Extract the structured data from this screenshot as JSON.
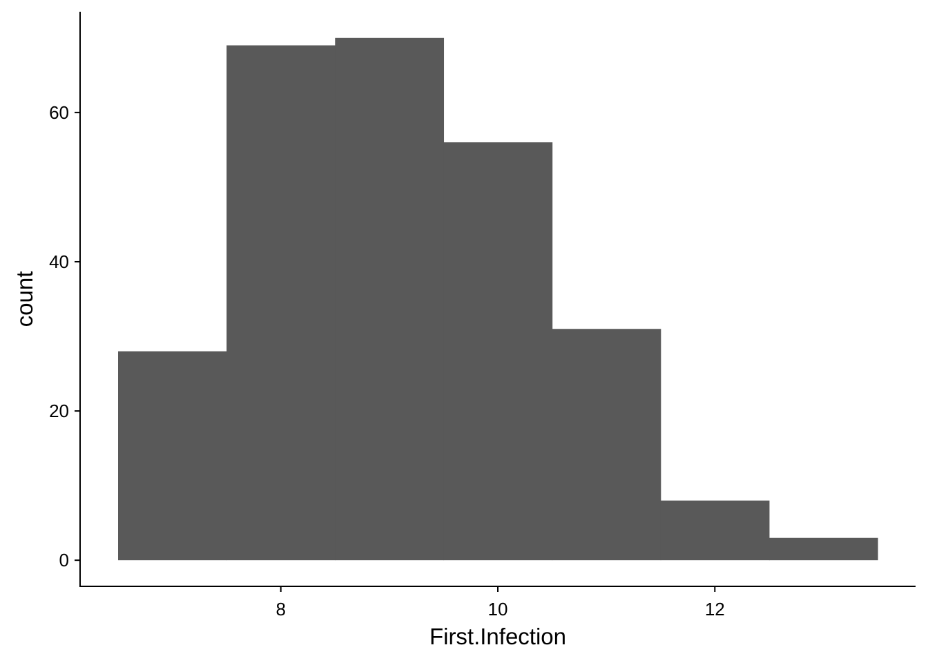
{
  "chart_data": {
    "type": "bar",
    "subtype": "histogram",
    "title": "",
    "xlabel": "First.Infection",
    "ylabel": "count",
    "bins": [
      {
        "x0": 6.5,
        "x1": 7.5,
        "count": 28
      },
      {
        "x0": 7.5,
        "x1": 8.5,
        "count": 69
      },
      {
        "x0": 8.5,
        "x1": 9.5,
        "count": 70
      },
      {
        "x0": 9.5,
        "x1": 10.5,
        "count": 56
      },
      {
        "x0": 10.5,
        "x1": 11.5,
        "count": 31
      },
      {
        "x0": 11.5,
        "x1": 12.5,
        "count": 8
      },
      {
        "x0": 12.5,
        "x1": 13.5,
        "count": 3
      }
    ],
    "xlim": [
      6.15,
      13.85
    ],
    "ylim": [
      -3.5,
      73.5
    ],
    "xticks": [
      8,
      10,
      12
    ],
    "xtick_labels": [
      "8",
      "10",
      "12"
    ],
    "yticks": [
      0,
      20,
      40,
      60
    ],
    "ytick_labels": [
      "0",
      "20",
      "40",
      "60"
    ],
    "bar_color": "#595959",
    "grid": false,
    "legend": "none"
  }
}
